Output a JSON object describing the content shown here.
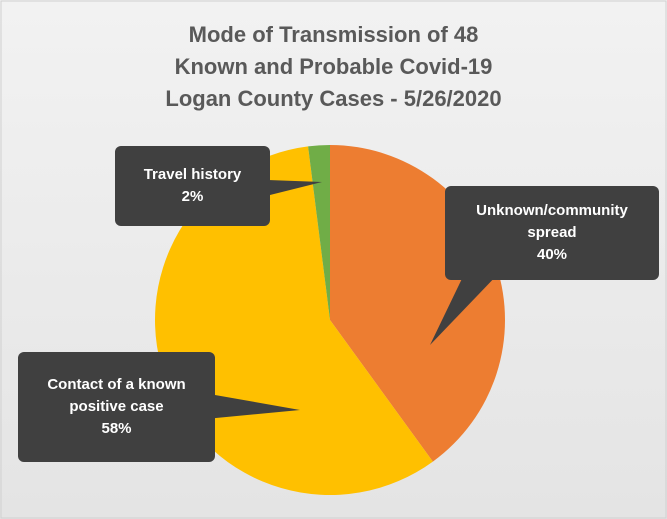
{
  "chart_data": {
    "type": "pie",
    "title": [
      "Mode of Transmission of 48",
      "Known and Probable Covid-19",
      "Logan County Cases - 5/26/2020"
    ],
    "categories": [
      "Unknown/community spread",
      "Contact of a known positive case",
      "Travel history"
    ],
    "values": [
      40,
      58,
      2
    ],
    "value_labels": [
      "40%",
      "58%",
      "2%"
    ],
    "colors": [
      "#ed7d31",
      "#ffc000",
      "#70ad47"
    ]
  }
}
